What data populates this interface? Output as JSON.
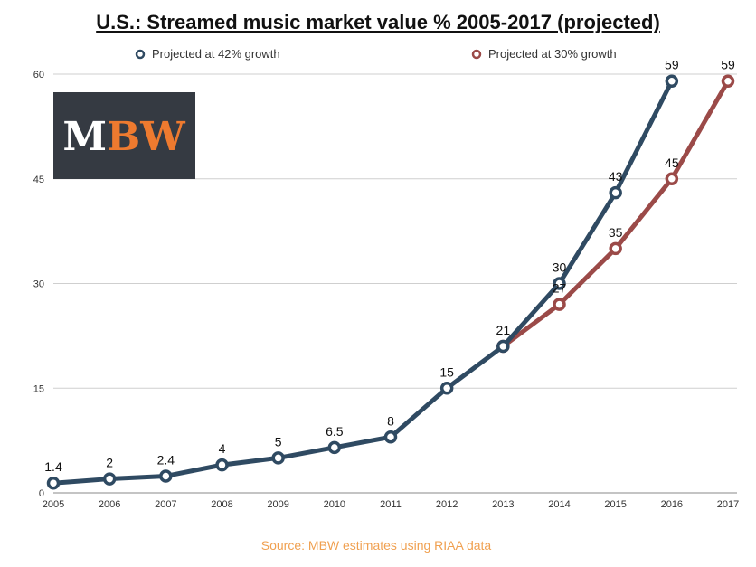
{
  "chart_data": {
    "type": "line",
    "title": "U.S.: Streamed music market value % 2005-2017 (projected)",
    "xlabel": "",
    "ylabel": "",
    "categories": [
      "2005",
      "2006",
      "2007",
      "2008",
      "2009",
      "2010",
      "2011",
      "2012",
      "2013",
      "2014",
      "2015",
      "2016",
      "2017"
    ],
    "ylim": [
      0,
      60
    ],
    "yticks": [
      0,
      15,
      30,
      45,
      60
    ],
    "grid": true,
    "legend_position": "top",
    "series": [
      {
        "name": "Projected at 42% growth",
        "color": "#2f4a62",
        "x": [
          "2005",
          "2006",
          "2007",
          "2008",
          "2009",
          "2010",
          "2011",
          "2012",
          "2013",
          "2014",
          "2015",
          "2016"
        ],
        "values": [
          1.4,
          2,
          2.4,
          4,
          5,
          6.5,
          8,
          15,
          21,
          30,
          43,
          59
        ],
        "labels": [
          "1.4",
          "2",
          "2.4",
          "4",
          "5",
          "6.5",
          "8",
          "15",
          "21",
          "30",
          "43",
          "59"
        ]
      },
      {
        "name": "Projected at 30% growth",
        "color": "#9b4a48",
        "x": [
          "2013",
          "2014",
          "2015",
          "2016",
          "2017"
        ],
        "values": [
          21,
          27,
          35,
          45,
          59
        ],
        "labels": [
          "",
          "27",
          "35",
          "45",
          "59"
        ]
      }
    ]
  },
  "logo": {
    "text_white": "M",
    "text_orange": "BW",
    "bg_color": "#353a42",
    "white_color": "#ffffff",
    "orange_color": "#ee7a2f"
  },
  "source": {
    "text": "Source: MBW estimates using RIAA data",
    "color": "#f0a050"
  }
}
